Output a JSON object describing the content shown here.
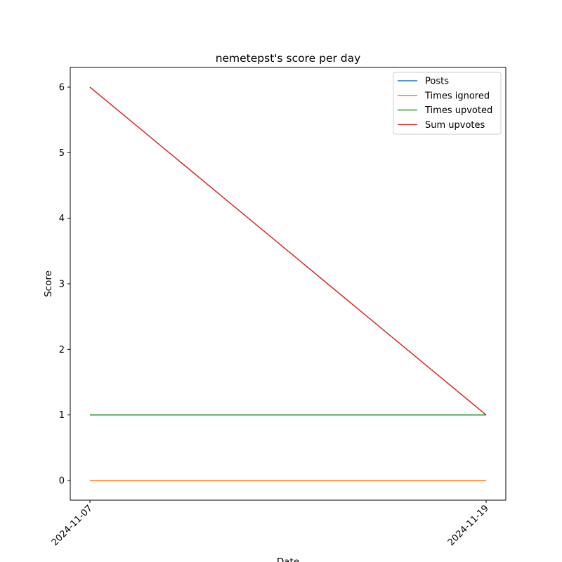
{
  "chart_data": {
    "type": "line",
    "title": "nemetepst's score per day",
    "xlabel": "Date",
    "ylabel": "Score",
    "x": [
      "2024-11-07",
      "2024-11-19"
    ],
    "ylim": [
      -0.3,
      6.3
    ],
    "yticks": [
      0,
      1,
      2,
      3,
      4,
      5,
      6
    ],
    "grid": false,
    "legend_position": "top-right",
    "series": [
      {
        "name": "Posts",
        "values": [
          1,
          1
        ],
        "color": "#1f77b4"
      },
      {
        "name": "Times ignored",
        "values": [
          0,
          0
        ],
        "color": "#ff7f0e"
      },
      {
        "name": "Times upvoted",
        "values": [
          1,
          1
        ],
        "color": "#2ca02c"
      },
      {
        "name": "Sum upvotes",
        "values": [
          6,
          1
        ],
        "color": "#d62728"
      }
    ]
  }
}
